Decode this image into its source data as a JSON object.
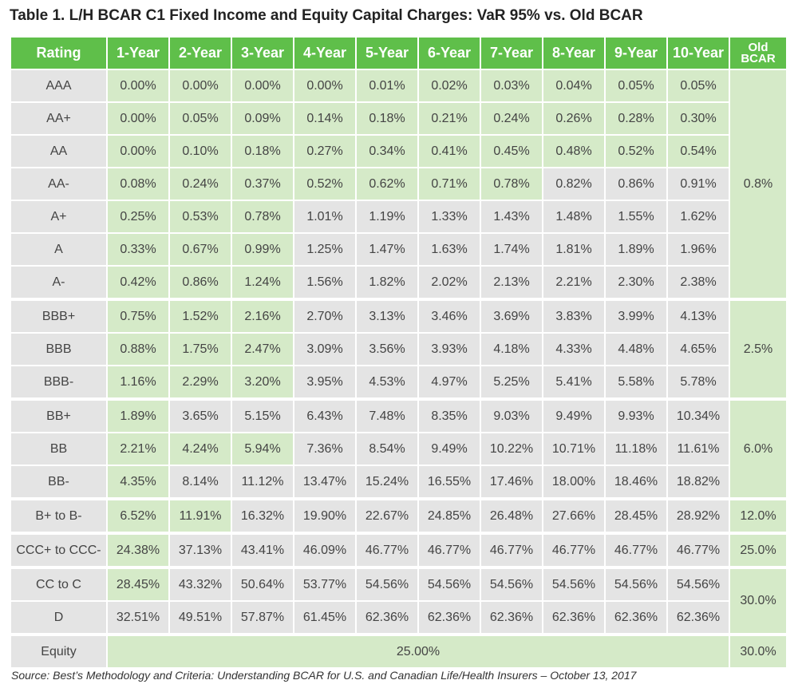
{
  "title": "Table 1. L/H BCAR C1 Fixed Income and Equity Capital Charges: VaR 95% vs. Old BCAR",
  "headers": {
    "rating": "Rating",
    "years": [
      "1-Year",
      "2-Year",
      "3-Year",
      "4-Year",
      "5-Year",
      "6-Year",
      "7-Year",
      "8-Year",
      "9-Year",
      "10-Year"
    ],
    "old_line1": "Old",
    "old_line2": "BCAR"
  },
  "rows": [
    {
      "rating": "AAA",
      "values": [
        "0.00%",
        "0.00%",
        "0.00%",
        "0.00%",
        "0.01%",
        "0.02%",
        "0.03%",
        "0.04%",
        "0.05%",
        "0.05%"
      ]
    },
    {
      "rating": "AA+",
      "values": [
        "0.00%",
        "0.05%",
        "0.09%",
        "0.14%",
        "0.18%",
        "0.21%",
        "0.24%",
        "0.26%",
        "0.28%",
        "0.30%"
      ]
    },
    {
      "rating": "AA",
      "values": [
        "0.00%",
        "0.10%",
        "0.18%",
        "0.27%",
        "0.34%",
        "0.41%",
        "0.45%",
        "0.48%",
        "0.52%",
        "0.54%"
      ]
    },
    {
      "rating": "AA-",
      "values": [
        "0.08%",
        "0.24%",
        "0.37%",
        "0.52%",
        "0.62%",
        "0.71%",
        "0.78%",
        "0.82%",
        "0.86%",
        "0.91%"
      ]
    },
    {
      "rating": "A+",
      "values": [
        "0.25%",
        "0.53%",
        "0.78%",
        "1.01%",
        "1.19%",
        "1.33%",
        "1.43%",
        "1.48%",
        "1.55%",
        "1.62%"
      ]
    },
    {
      "rating": "A",
      "values": [
        "0.33%",
        "0.67%",
        "0.99%",
        "1.25%",
        "1.47%",
        "1.63%",
        "1.74%",
        "1.81%",
        "1.89%",
        "1.96%"
      ]
    },
    {
      "rating": "A-",
      "values": [
        "0.42%",
        "0.86%",
        "1.24%",
        "1.56%",
        "1.82%",
        "2.02%",
        "2.13%",
        "2.21%",
        "2.30%",
        "2.38%"
      ]
    },
    {
      "rating": "BBB+",
      "values": [
        "0.75%",
        "1.52%",
        "2.16%",
        "2.70%",
        "3.13%",
        "3.46%",
        "3.69%",
        "3.83%",
        "3.99%",
        "4.13%"
      ]
    },
    {
      "rating": "BBB",
      "values": [
        "0.88%",
        "1.75%",
        "2.47%",
        "3.09%",
        "3.56%",
        "3.93%",
        "4.18%",
        "4.33%",
        "4.48%",
        "4.65%"
      ]
    },
    {
      "rating": "BBB-",
      "values": [
        "1.16%",
        "2.29%",
        "3.20%",
        "3.95%",
        "4.53%",
        "4.97%",
        "5.25%",
        "5.41%",
        "5.58%",
        "5.78%"
      ]
    },
    {
      "rating": "BB+",
      "values": [
        "1.89%",
        "3.65%",
        "5.15%",
        "6.43%",
        "7.48%",
        "8.35%",
        "9.03%",
        "9.49%",
        "9.93%",
        "10.34%"
      ]
    },
    {
      "rating": "BB",
      "values": [
        "2.21%",
        "4.24%",
        "5.94%",
        "7.36%",
        "8.54%",
        "9.49%",
        "10.22%",
        "10.71%",
        "11.18%",
        "11.61%"
      ]
    },
    {
      "rating": "BB-",
      "values": [
        "4.35%",
        "8.14%",
        "11.12%",
        "13.47%",
        "15.24%",
        "16.55%",
        "17.46%",
        "18.00%",
        "18.46%",
        "18.82%"
      ]
    },
    {
      "rating": "B+ to B-",
      "values": [
        "6.52%",
        "11.91%",
        "16.32%",
        "19.90%",
        "22.67%",
        "24.85%",
        "26.48%",
        "27.66%",
        "28.45%",
        "28.92%"
      ]
    },
    {
      "rating": "CCC+ to CCC-",
      "values": [
        "24.38%",
        "37.13%",
        "43.41%",
        "46.09%",
        "46.77%",
        "46.77%",
        "46.77%",
        "46.77%",
        "46.77%",
        "46.77%"
      ]
    },
    {
      "rating": "CC to C",
      "values": [
        "28.45%",
        "43.32%",
        "50.64%",
        "53.77%",
        "54.56%",
        "54.56%",
        "54.56%",
        "54.56%",
        "54.56%",
        "54.56%"
      ]
    },
    {
      "rating": "D",
      "values": [
        "32.51%",
        "49.51%",
        "57.87%",
        "61.45%",
        "62.36%",
        "62.36%",
        "62.36%",
        "62.36%",
        "62.36%",
        "62.36%"
      ]
    }
  ],
  "old_bcar": {
    "aaa_to_a": "0.8%",
    "bbb": "2.5%",
    "bb": "6.0%",
    "b": "12.0%",
    "ccc": "25.0%",
    "cc_to_d": "30.0%"
  },
  "equity": {
    "label": "Equity",
    "value": "25.00%",
    "old": "30.0%"
  },
  "source": "Source: Best’s Methodology and Criteria: Understanding BCAR for U.S. and Canadian Life/Health Insurers – October 13, 2017",
  "colors": {
    "header_green": "#5fbf4a",
    "light_green": "#d5eac8",
    "gray": "#e4e4e4"
  }
}
